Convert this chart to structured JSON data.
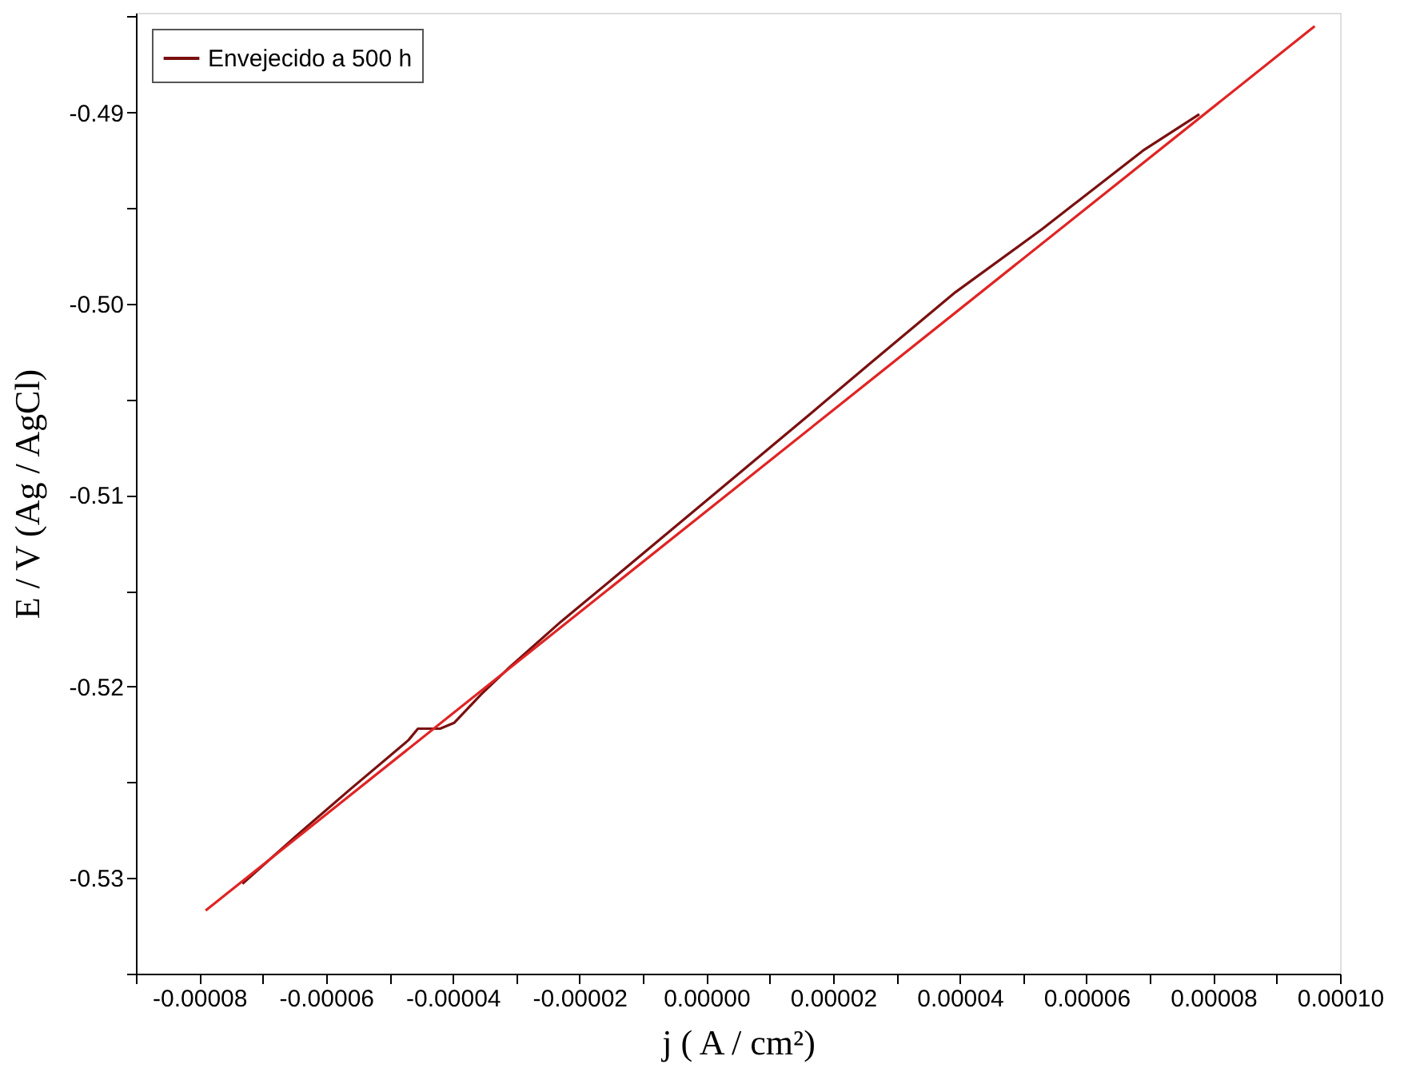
{
  "chart_data": {
    "type": "line",
    "xlabel": "j ( A / cm²)",
    "ylabel": "E / V (Ag / AgCl)",
    "xlim": [
      -9e-05,
      0.0001
    ],
    "ylim": [
      -0.535,
      -0.4848
    ],
    "xticks": [
      {
        "value": -9e-05,
        "label": null
      },
      {
        "value": -8e-05,
        "label": "-0.00008"
      },
      {
        "value": -7e-05,
        "label": null
      },
      {
        "value": -6e-05,
        "label": "-0.00006"
      },
      {
        "value": -5e-05,
        "label": null
      },
      {
        "value": -4e-05,
        "label": "-0.00004"
      },
      {
        "value": -3e-05,
        "label": null
      },
      {
        "value": -2e-05,
        "label": "-0.00002"
      },
      {
        "value": -1e-05,
        "label": null
      },
      {
        "value": 0,
        "label": "0.00000"
      },
      {
        "value": 1e-05,
        "label": null
      },
      {
        "value": 2e-05,
        "label": "0.00002"
      },
      {
        "value": 3e-05,
        "label": null
      },
      {
        "value": 4e-05,
        "label": "0.00004"
      },
      {
        "value": 5e-05,
        "label": null
      },
      {
        "value": 6e-05,
        "label": "0.00006"
      },
      {
        "value": 7e-05,
        "label": null
      },
      {
        "value": 8e-05,
        "label": "0.00008"
      },
      {
        "value": 9e-05,
        "label": null
      },
      {
        "value": 0.0001,
        "label": "0.00010"
      }
    ],
    "yticks": [
      {
        "value": -0.535,
        "label": null
      },
      -0.53,
      {
        "value": -0.525,
        "label": null
      },
      -0.52,
      {
        "value": -0.515,
        "label": null
      },
      -0.51,
      {
        "value": -0.505,
        "label": null
      },
      {
        "value": -0.5,
        "label": "-0.50"
      },
      {
        "value": -0.495,
        "label": null
      },
      -0.49,
      {
        "value": -0.485,
        "label": null
      }
    ],
    "grid": false,
    "legend": "top left",
    "marker": "none",
    "line_style": "solid",
    "series": [
      {
        "name": "Envejecido a 500 h",
        "color": "#7a1010",
        "x": [
          -7.32e-05,
          -6.47e-05,
          -5.63e-05,
          -4.7e-05,
          -4.55e-05,
          -4.2e-05,
          -3.98e-05,
          -3.55e-05,
          -3.14e-05,
          -2.29e-05,
          -1.45e-05,
          7e-07,
          1.66e-05,
          2.59e-05,
          3.93e-05,
          5.3e-05,
          5.88e-05,
          6.89e-05,
          7.78e-05
        ],
        "values": [
          -0.5303,
          -0.5278,
          -0.5254,
          -0.5228,
          -0.5222,
          -0.5222,
          -0.5219,
          -0.5204,
          -0.5191,
          -0.5166,
          -0.5143,
          -0.5101,
          -0.5057,
          -0.5031,
          -0.4994,
          -0.4961,
          -0.4946,
          -0.492,
          -0.4901
        ]
      },
      {
        "type": "line",
        "color": "#e02424",
        "x": [
          -7.9e-05,
          9.6e-05
        ],
        "values": [
          -0.5317,
          -0.4855
        ]
      }
    ]
  }
}
